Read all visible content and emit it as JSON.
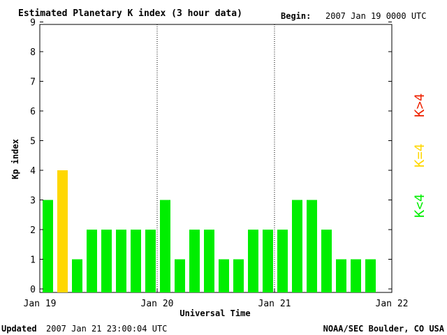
{
  "header": {
    "begin_label": "Begin:",
    "begin_value": "2007 Jan 19 0000 UTC"
  },
  "footer": {
    "updated_label": "Updated",
    "updated_value": "2007 Jan 21 23:00:04 UTC",
    "source": "NOAA/SEC Boulder, CO USA"
  },
  "legend": {
    "low": "K<4",
    "mid": "K=4",
    "high": "K>4"
  },
  "colors": {
    "low": "#00ee00",
    "mid": "#ffd700",
    "high": "#ee2200",
    "axis": "#000000",
    "divider": "#000000"
  },
  "chart_data": {
    "type": "bar",
    "title": "Estimated Planetary K index (3 hour data)",
    "xlabel": "Universal Time",
    "ylabel": "Kp index",
    "ylim": [
      0,
      9
    ],
    "yticks": [
      "0",
      "1",
      "2",
      "3",
      "4",
      "5",
      "6",
      "7",
      "8",
      "9"
    ],
    "day_labels": [
      "Jan 19",
      "Jan 20",
      "Jan 21",
      "Jan 22"
    ],
    "bars_per_day": 8,
    "grid": false,
    "values": [
      3,
      4,
      1,
      2,
      2,
      2,
      2,
      2,
      3,
      1,
      2,
      2,
      1,
      1,
      2,
      2,
      2,
      3,
      3,
      2,
      1,
      1,
      1
    ]
  }
}
